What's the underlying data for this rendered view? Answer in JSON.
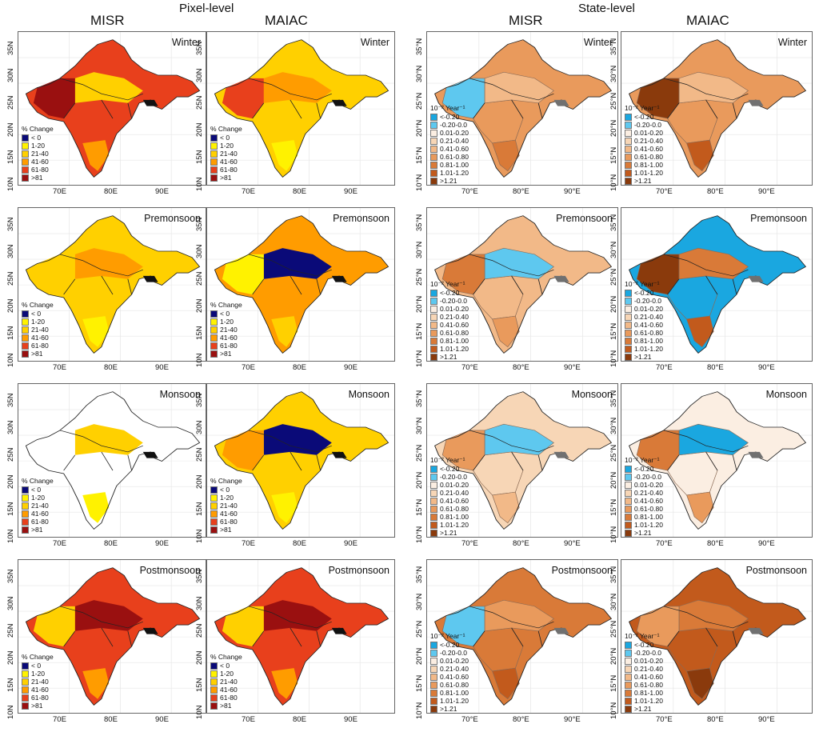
{
  "titles": {
    "pixel_level": "Pixel-level",
    "state_level": "State-level"
  },
  "columns": [
    "MISR",
    "MAIAC",
    "MISR",
    "MAIAC"
  ],
  "seasons": [
    "Winter",
    "Premonsoon",
    "Monsoon",
    "Postmonsoon"
  ],
  "pixel_axes": {
    "lat_ticks": [
      "35N",
      "30N",
      "25N",
      "20N",
      "15N",
      "10N"
    ],
    "lon_ticks": [
      "70E",
      "80E",
      "90E"
    ]
  },
  "state_axes": {
    "lat_ticks": [
      "35°N",
      "30°N",
      "25°N",
      "20°N",
      "15°N",
      "10°N"
    ],
    "lon_ticks": [
      "70°E",
      "80°E",
      "90°E"
    ]
  },
  "pixel_legend": {
    "title": "% Change",
    "items": [
      {
        "label": "< 0",
        "color": "#0a0a78"
      },
      {
        "label": "1-20",
        "color": "#fff200"
      },
      {
        "label": "21-40",
        "color": "#ffd000"
      },
      {
        "label": "41-60",
        "color": "#ff9c00"
      },
      {
        "label": "61-80",
        "color": "#e8401c"
      },
      {
        "label": ">81",
        "color": "#9a1010"
      }
    ]
  },
  "state_legend": {
    "title": "10⁻² Year⁻¹",
    "items": [
      {
        "label": "<-0.20",
        "color": "#1aa7e0"
      },
      {
        "label": "-0.20-0.0",
        "color": "#5ec8ef"
      },
      {
        "label": "0.01-0.20",
        "color": "#fbeee2"
      },
      {
        "label": "0.21-0.40",
        "color": "#f7d6b6"
      },
      {
        "label": "0.41-0.60",
        "color": "#f2b988"
      },
      {
        "label": "0.61-0.80",
        "color": "#e99a5c"
      },
      {
        "label": "0.81-1.00",
        "color": "#d97a38"
      },
      {
        "label": "1.01-1.20",
        "color": "#c25a1c"
      },
      {
        "label": ">1.21",
        "color": "#8a3a0c"
      }
    ]
  },
  "panel_fills": [
    {
      "col": 0,
      "row": 0,
      "colors": [
        "#e8401c",
        "#ff9c00",
        "#ffd000",
        "#9a1010"
      ]
    },
    {
      "col": 1,
      "row": 0,
      "colors": [
        "#ffd000",
        "#fff200",
        "#ff9c00",
        "#e8401c"
      ]
    },
    {
      "col": 0,
      "row": 1,
      "colors": [
        "#ffd000",
        "#fff200",
        "#ff9c00",
        "#ffd000"
      ]
    },
    {
      "col": 1,
      "row": 1,
      "colors": [
        "#ff9c00",
        "#ffd000",
        "#0a0a78",
        "#fff200"
      ]
    },
    {
      "col": 0,
      "row": 2,
      "colors": [
        "#ffffff",
        "#fff200",
        "#ffd000",
        "#ffffff"
      ]
    },
    {
      "col": 1,
      "row": 2,
      "colors": [
        "#ffd000",
        "#fff200",
        "#0a0a78",
        "#ff9c00"
      ]
    },
    {
      "col": 0,
      "row": 3,
      "colors": [
        "#e8401c",
        "#ff9c00",
        "#9a1010",
        "#ffd000"
      ]
    },
    {
      "col": 1,
      "row": 3,
      "colors": [
        "#e8401c",
        "#ff9c00",
        "#9a1010",
        "#ffd000"
      ]
    },
    {
      "col": 2,
      "row": 0,
      "colors": [
        "#e99a5c",
        "#d97a38",
        "#f2b988",
        "#5ec8ef"
      ]
    },
    {
      "col": 3,
      "row": 0,
      "colors": [
        "#e99a5c",
        "#c25a1c",
        "#f2b988",
        "#8a3a0c"
      ]
    },
    {
      "col": 2,
      "row": 1,
      "colors": [
        "#f2b988",
        "#e99a5c",
        "#5ec8ef",
        "#d97a38"
      ]
    },
    {
      "col": 3,
      "row": 1,
      "colors": [
        "#1aa7e0",
        "#c25a1c",
        "#d97a38",
        "#8a3a0c"
      ]
    },
    {
      "col": 2,
      "row": 2,
      "colors": [
        "#f7d6b6",
        "#f2b988",
        "#5ec8ef",
        "#e99a5c"
      ]
    },
    {
      "col": 3,
      "row": 2,
      "colors": [
        "#fbeee2",
        "#e99a5c",
        "#1aa7e0",
        "#d97a38"
      ]
    },
    {
      "col": 2,
      "row": 3,
      "colors": [
        "#d97a38",
        "#c25a1c",
        "#e99a5c",
        "#5ec8ef"
      ]
    },
    {
      "col": 3,
      "row": 3,
      "colors": [
        "#c25a1c",
        "#8a3a0c",
        "#d97a38",
        "#e99a5c"
      ]
    }
  ]
}
